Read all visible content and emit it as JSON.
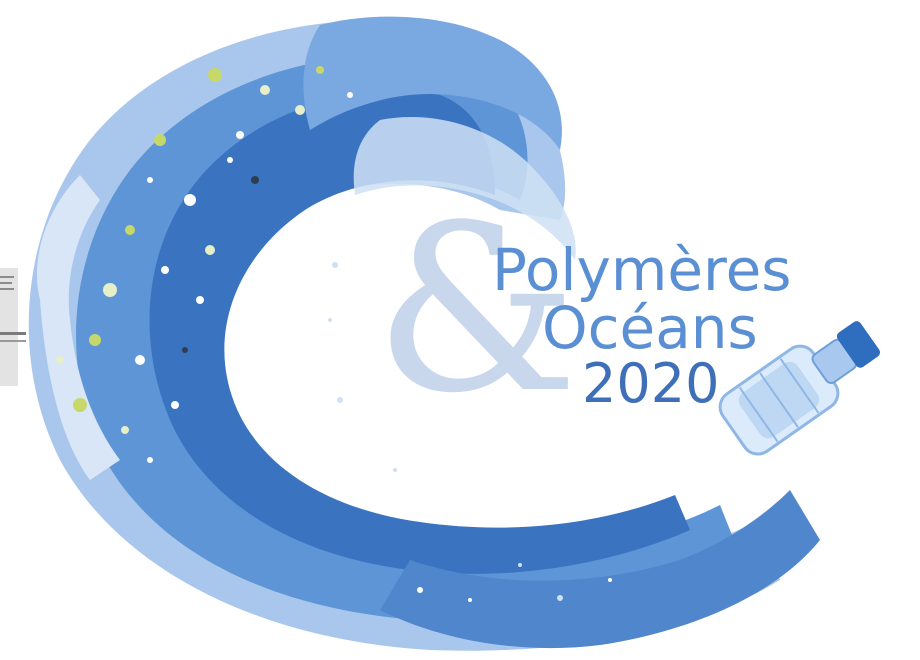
{
  "logo": {
    "line_1": "Polymères",
    "ampersand": "&",
    "line_2": "Océans",
    "line_3": "2020"
  },
  "colors": {
    "text_blue": "#5b8fd4",
    "text_dark_blue": "#3e6fb8",
    "ampersand_light": "#c3d3ea",
    "wave_dark": "#3a73c0",
    "wave_mid": "#5e95d6",
    "wave_light": "#9cc0ea",
    "wave_pale": "#cfe0f4",
    "debris_yellow": "#c6d86a",
    "debris_pale": "#e6efc8"
  },
  "icons": [
    "wave-graphic",
    "plastic-bottle-icon",
    "debris-particles"
  ]
}
